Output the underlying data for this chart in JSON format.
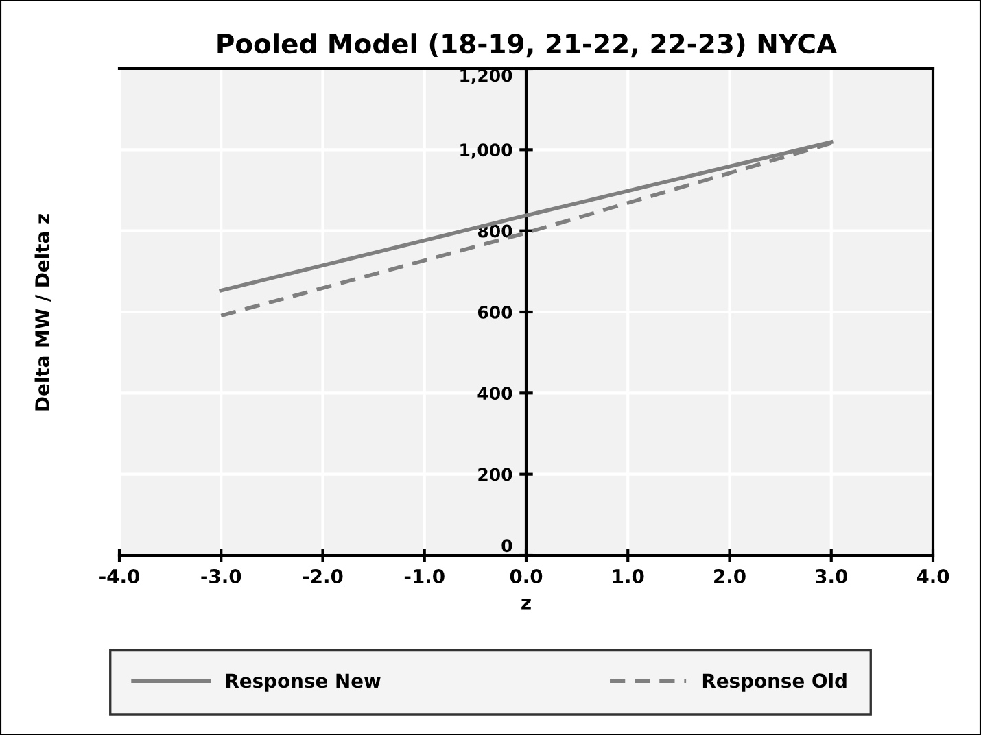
{
  "chart_data": {
    "type": "line",
    "title": "Pooled Model (18-19, 21-22, 22-23) NYCA",
    "xlabel": "z",
    "ylabel": "Delta MW / Delta z",
    "x": [
      -3,
      0,
      3
    ],
    "series": [
      {
        "name": "Response New",
        "color": "#7f7f7f",
        "line_style": "solid",
        "values": [
          653,
          838,
          1019
        ]
      },
      {
        "name": "Response Old",
        "color": "#7f7f7f",
        "line_style": "dashed",
        "values": [
          591,
          795,
          1016
        ]
      }
    ],
    "xlim": [
      -4,
      4
    ],
    "xticks": [
      {
        "value": -4,
        "label": "-4.0"
      },
      {
        "value": -3,
        "label": "-3.0"
      },
      {
        "value": -2,
        "label": "-2.0"
      },
      {
        "value": -1,
        "label": "-1.0"
      },
      {
        "value": 0,
        "label": "0.0"
      },
      {
        "value": 1,
        "label": "1.0"
      },
      {
        "value": 2,
        "label": "2.0"
      },
      {
        "value": 3,
        "label": "3.0"
      },
      {
        "value": 4,
        "label": "4.0"
      }
    ],
    "ylim": [
      0,
      1200
    ],
    "yticks": [
      0,
      200,
      400,
      600,
      800,
      {
        "value": 1000,
        "label": "1,000"
      },
      {
        "value": 1200,
        "label": "1,200"
      }
    ],
    "grid": true,
    "legend": "bottom",
    "marker": "none"
  }
}
